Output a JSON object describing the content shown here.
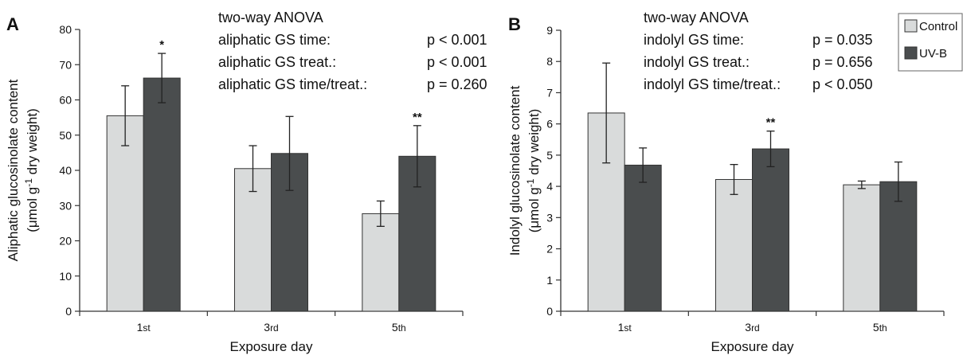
{
  "colors": {
    "control": "#d9dbdb",
    "uvb": "#4a4d4e",
    "axis": "#333333"
  },
  "chart_data": [
    {
      "type": "bar",
      "panel_label": "A",
      "categories": [
        "1st",
        "3rd",
        "5th"
      ],
      "series": [
        {
          "name": "Control",
          "values": [
            55.5,
            40.5,
            27.7
          ],
          "errors": [
            8.5,
            6.5,
            3.6
          ]
        },
        {
          "name": "UV-B",
          "values": [
            66.2,
            44.8,
            44.0
          ],
          "errors": [
            7.0,
            10.5,
            8.7
          ]
        }
      ],
      "significance": [
        {
          "category": 0,
          "series": 1,
          "label": "*"
        },
        {
          "category": 2,
          "series": 1,
          "label": "**"
        }
      ],
      "xlabel": "Exposure day",
      "ylabel": "Aliphatic glucosinolate content",
      "ylabel_unit_parts": [
        "(μmol g",
        "-1",
        " dry weight)"
      ],
      "ylim": [
        0,
        80
      ],
      "yticks": [
        0,
        10,
        20,
        30,
        40,
        50,
        60,
        70,
        80
      ],
      "stats_title": "two-way ANOVA",
      "stats": [
        {
          "label": "aliphatic GS time:",
          "value": "p < 0.001"
        },
        {
          "label": "aliphatic GS treat.:",
          "value": "p < 0.001"
        },
        {
          "label": "aliphatic GS time/treat.:",
          "value": "p = 0.260"
        }
      ]
    },
    {
      "type": "bar",
      "panel_label": "B",
      "categories": [
        "1st",
        "3rd",
        "5th"
      ],
      "series": [
        {
          "name": "Control",
          "values": [
            6.35,
            4.22,
            4.05
          ],
          "errors": [
            1.6,
            0.48,
            0.12
          ]
        },
        {
          "name": "UV-B",
          "values": [
            4.68,
            5.2,
            4.15
          ],
          "errors": [
            0.55,
            0.57,
            0.63
          ]
        }
      ],
      "significance": [
        {
          "category": 1,
          "series": 1,
          "label": "**"
        }
      ],
      "xlabel": "Exposure day",
      "ylabel": "Indolyl glucosinolate content",
      "ylabel_unit_parts": [
        "(μmol g",
        "-1",
        " dry weight)"
      ],
      "ylim": [
        0,
        9
      ],
      "yticks": [
        0,
        1,
        2,
        3,
        4,
        5,
        6,
        7,
        8,
        9
      ],
      "stats_title": "two-way ANOVA",
      "stats": [
        {
          "label": "indolyl GS time:",
          "value": "p = 0.035"
        },
        {
          "label": "indolyl GS treat.:",
          "value": "p = 0.656"
        },
        {
          "label": "indolyl GS time/treat.:",
          "value": "p < 0.050"
        }
      ],
      "legend": [
        "Control",
        "UV-B"
      ],
      "legend_position": "top-right"
    }
  ]
}
